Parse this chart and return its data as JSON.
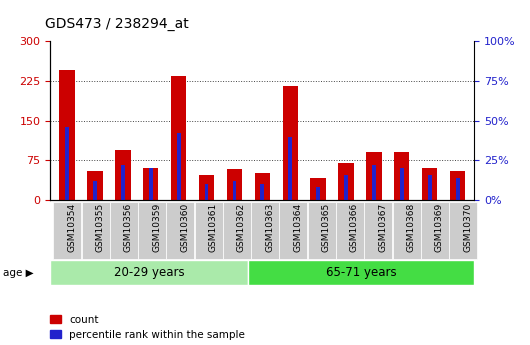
{
  "title": "GDS473 / 238294_at",
  "categories": [
    "GSM10354",
    "GSM10355",
    "GSM10356",
    "GSM10359",
    "GSM10360",
    "GSM10361",
    "GSM10362",
    "GSM10363",
    "GSM10364",
    "GSM10365",
    "GSM10366",
    "GSM10367",
    "GSM10368",
    "GSM10369",
    "GSM10370"
  ],
  "count_values": [
    245,
    55,
    95,
    60,
    235,
    47,
    58,
    52,
    215,
    42,
    70,
    90,
    90,
    60,
    55
  ],
  "percentile_values": [
    46,
    12,
    22,
    20,
    42,
    10,
    12,
    10,
    40,
    8,
    16,
    22,
    20,
    16,
    14
  ],
  "group1_label": "20-29 years",
  "group1_count": 7,
  "group2_label": "65-71 years",
  "group2_count": 8,
  "age_label": "age",
  "ylim_left": [
    0,
    300
  ],
  "ylim_right": [
    0,
    100
  ],
  "yticks_left": [
    0,
    75,
    150,
    225,
    300
  ],
  "yticks_right": [
    0,
    25,
    50,
    75,
    100
  ],
  "ytick_labels_right": [
    "0%",
    "25%",
    "50%",
    "75%",
    "100%"
  ],
  "bar_color_red": "#cc0000",
  "bar_color_blue": "#2222cc",
  "group1_bg": "#aaeaaa",
  "group2_bg": "#44dd44",
  "xticklabel_bg": "#cccccc",
  "bar_width": 0.55,
  "legend_count": "count",
  "legend_pct": "percentile rank within the sample",
  "dotted_color": "#444444",
  "left_tick_color": "#cc0000",
  "right_tick_color": "#2222cc",
  "title_fontsize": 10,
  "axis_tick_fontsize": 8,
  "xlabel_fontsize": 7
}
